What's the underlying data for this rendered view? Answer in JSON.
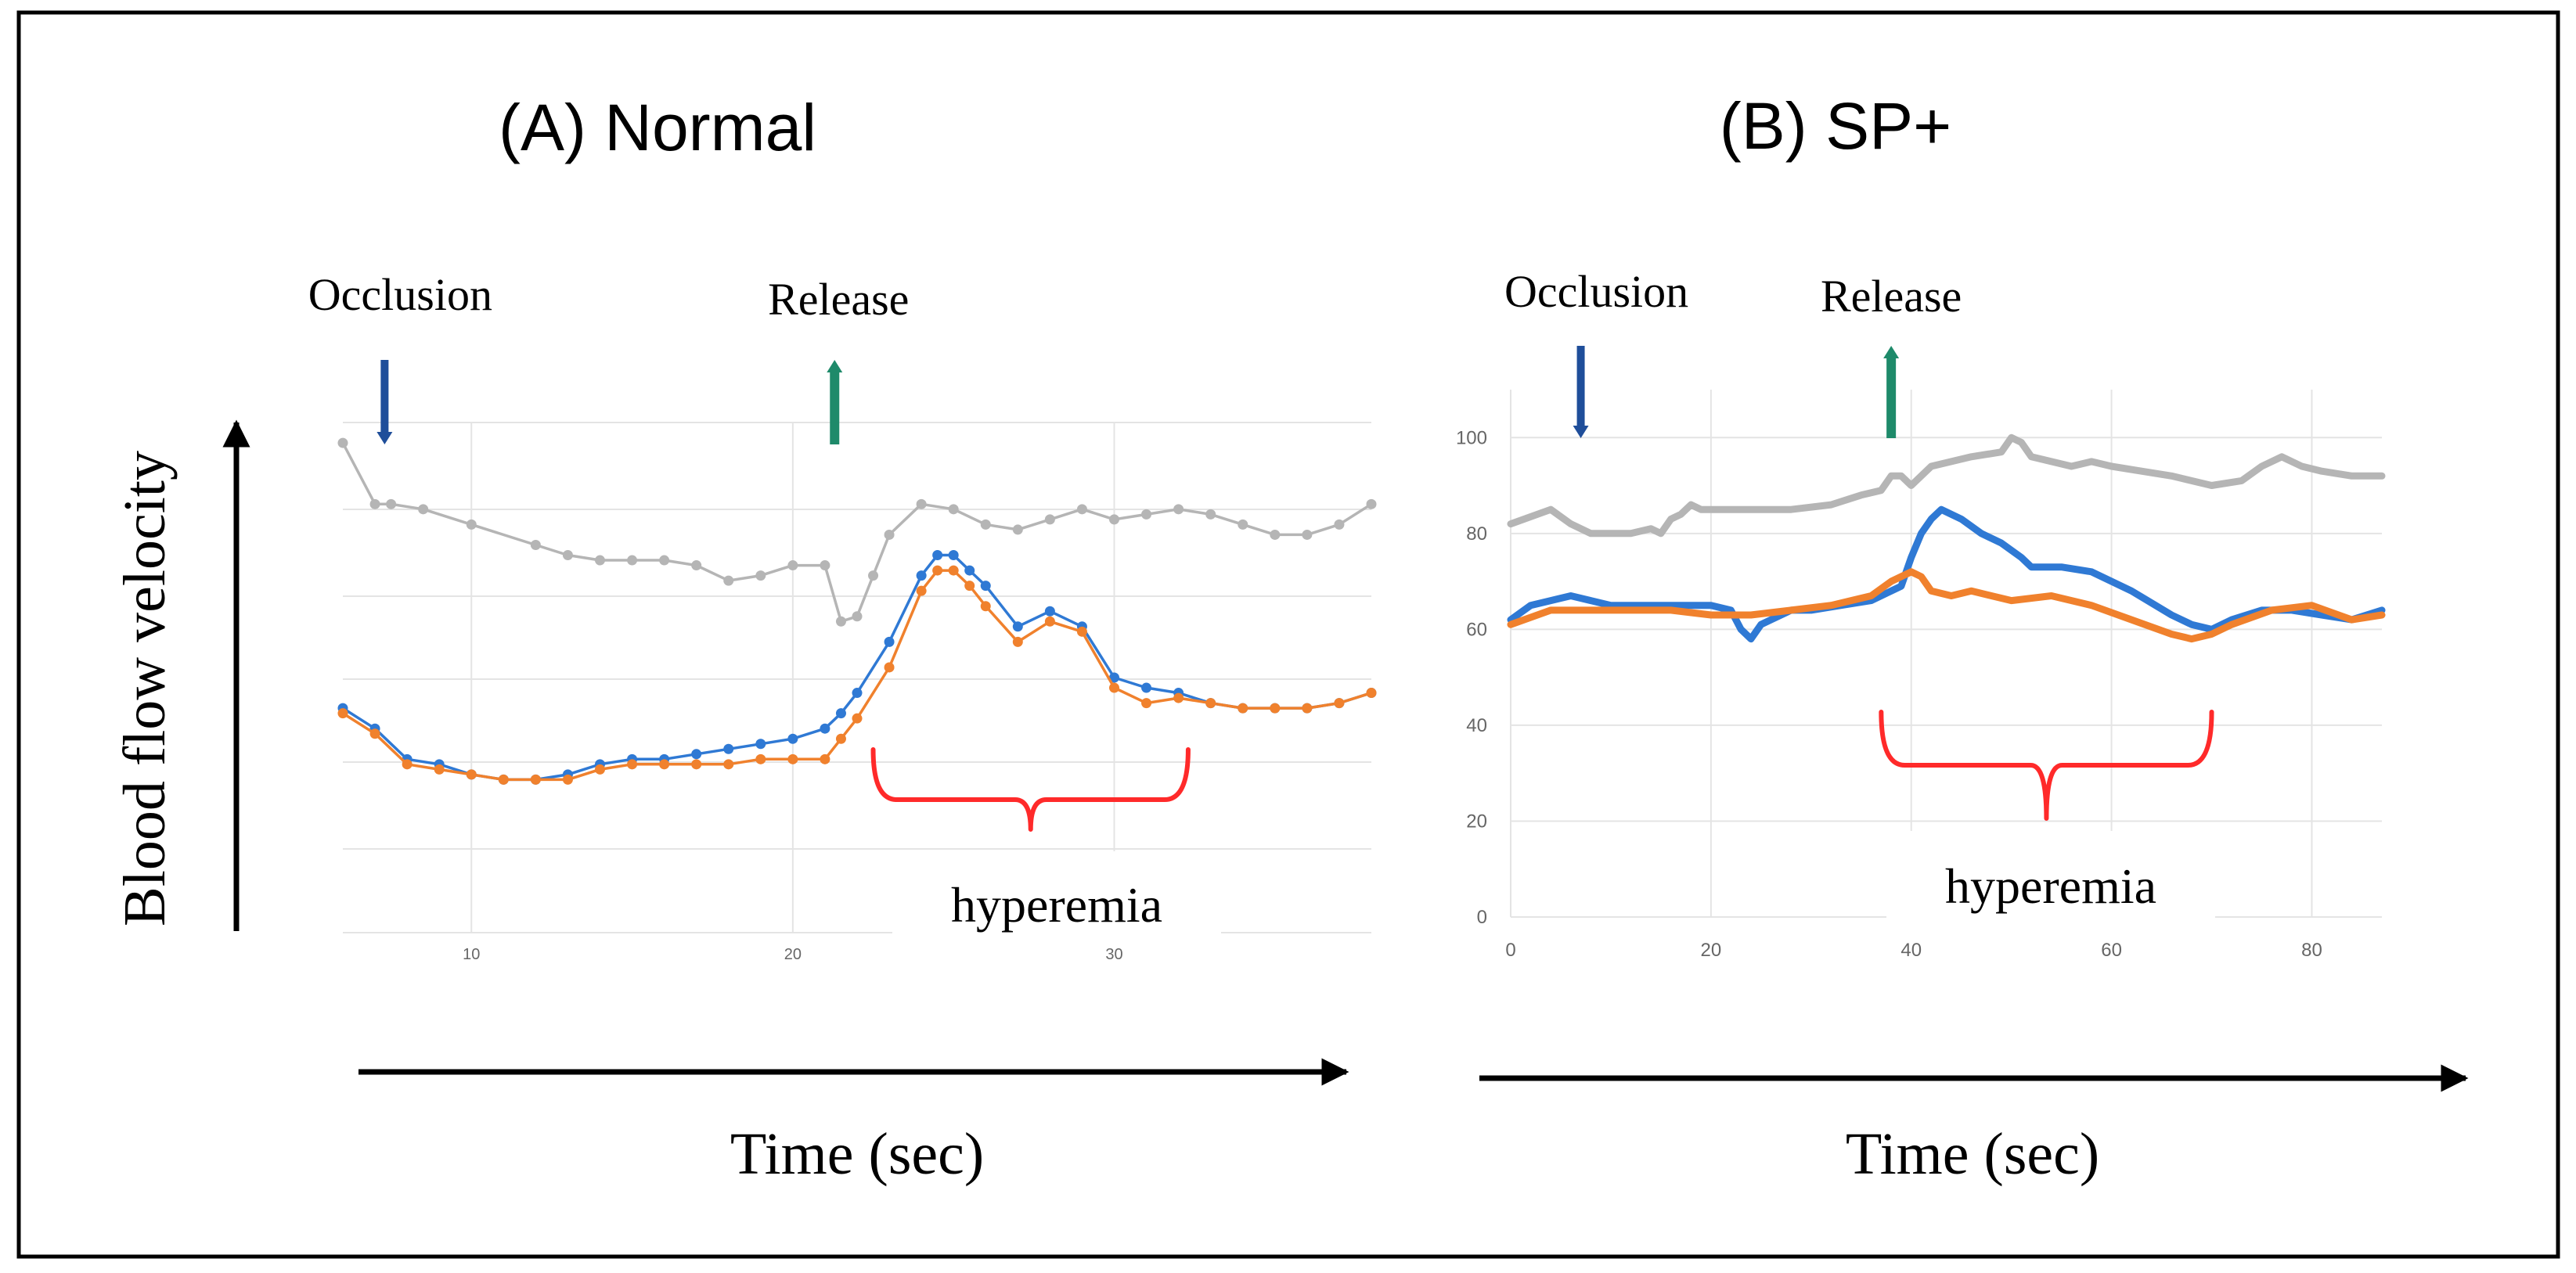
{
  "colors": {
    "blue": "#2f79d4",
    "orange": "#f0812d",
    "gray": "#b5b5b5",
    "bracket": "#ff2a2a",
    "occlusion_arrow": "#1f4e9a",
    "release_arrow": "#1e8a6a",
    "axis": "#000000",
    "grid": "#e4e4e4"
  },
  "figure": {
    "y_axis_label": "Blood flow velocity",
    "x_axis_label": "Time (sec)"
  },
  "chart_data": [
    {
      "type": "line",
      "title": "(A) Normal",
      "xlabel": "Time (sec)",
      "ylabel": "Blood flow velocity",
      "xlim": [
        6,
        38
      ],
      "ylim": [
        0,
        100
      ],
      "xticks": [
        "10",
        "20",
        "30"
      ],
      "xtick_values": [
        10,
        20,
        30
      ],
      "yticks": [],
      "show_markers": true,
      "grid": true,
      "annotations": {
        "occlusion": {
          "label": "Occlusion",
          "x": 7.3
        },
        "release": {
          "label": "Release",
          "x": 21.3
        },
        "hyperemia": {
          "label": "hyperemia",
          "x_start": 22.5,
          "x_end": 32.3
        }
      },
      "series": [
        {
          "name": "gray",
          "x": [
            6,
            7,
            7.5,
            8.5,
            10,
            12,
            13,
            14,
            15,
            16,
            17,
            18,
            19,
            20,
            21,
            21.5,
            22,
            22.5,
            23,
            24,
            25,
            26,
            27,
            28,
            29,
            30,
            31,
            32,
            33,
            34,
            35,
            36,
            37,
            38
          ],
          "y": [
            96,
            84,
            84,
            83,
            80,
            76,
            74,
            73,
            73,
            73,
            72,
            69,
            70,
            72,
            72,
            61,
            62,
            70,
            78,
            84,
            83,
            80,
            79,
            81,
            83,
            81,
            82,
            83,
            82,
            80,
            78,
            78,
            80,
            84
          ]
        },
        {
          "name": "blue",
          "x": [
            6,
            7,
            8,
            9,
            10,
            11,
            12,
            13,
            14,
            15,
            16,
            17,
            18,
            19,
            20,
            21,
            21.5,
            22,
            23,
            24,
            24.5,
            25,
            25.5,
            26,
            27,
            28,
            29,
            30,
            31,
            32,
            33,
            34,
            35,
            36,
            37,
            38
          ],
          "y": [
            44,
            40,
            34,
            33,
            31,
            30,
            30,
            31,
            33,
            34,
            34,
            35,
            36,
            37,
            38,
            40,
            43,
            47,
            57,
            70,
            74,
            74,
            71,
            68,
            60,
            63,
            60,
            50,
            48,
            47,
            45,
            44,
            44,
            44,
            45,
            47
          ]
        },
        {
          "name": "orange",
          "x": [
            6,
            7,
            8,
            9,
            10,
            11,
            12,
            13,
            14,
            15,
            16,
            17,
            18,
            19,
            20,
            21,
            21.5,
            22,
            23,
            24,
            24.5,
            25,
            25.5,
            26,
            27,
            28,
            29,
            30,
            31,
            32,
            33,
            34,
            35,
            36,
            37,
            38
          ],
          "y": [
            43,
            39,
            33,
            32,
            31,
            30,
            30,
            30,
            32,
            33,
            33,
            33,
            33,
            34,
            34,
            34,
            38,
            42,
            52,
            67,
            71,
            71,
            68,
            64,
            57,
            61,
            59,
            48,
            45,
            46,
            45,
            44,
            44,
            44,
            45,
            47
          ]
        }
      ]
    },
    {
      "type": "line",
      "title": "(B) SP+",
      "xlabel": "Time (sec)",
      "ylabel": "Blood flow velocity",
      "xlim": [
        0,
        87
      ],
      "ylim": [
        0,
        110
      ],
      "xticks": [
        "0",
        "20",
        "40",
        "60",
        "80"
      ],
      "xtick_values": [
        0,
        20,
        40,
        60,
        80
      ],
      "yticks": [
        "0",
        "20",
        "40",
        "60",
        "80",
        "100"
      ],
      "ytick_values": [
        0,
        20,
        40,
        60,
        80,
        100
      ],
      "show_markers": false,
      "grid": true,
      "annotations": {
        "occlusion": {
          "label": "Occlusion",
          "x": 7
        },
        "release": {
          "label": "Release",
          "x": 38
        },
        "hyperemia": {
          "label": "hyperemia",
          "x_start": 37,
          "x_end": 70
        }
      },
      "series": [
        {
          "name": "gray",
          "x": [
            0,
            4,
            6,
            8,
            12,
            14,
            15,
            16,
            17,
            18,
            19,
            20,
            24,
            28,
            32,
            35,
            37,
            38,
            39,
            40,
            42,
            46,
            49,
            50,
            51,
            52,
            54,
            56,
            58,
            60,
            63,
            66,
            70,
            73,
            75,
            77,
            79,
            81,
            84,
            87
          ],
          "y": [
            82,
            85,
            82,
            80,
            80,
            81,
            80,
            83,
            84,
            86,
            85,
            85,
            85,
            85,
            86,
            88,
            89,
            92,
            92,
            90,
            94,
            96,
            97,
            100,
            99,
            96,
            95,
            94,
            95,
            94,
            93,
            92,
            90,
            91,
            94,
            96,
            94,
            93,
            92,
            92
          ]
        },
        {
          "name": "blue",
          "x": [
            0,
            2,
            4,
            6,
            8,
            10,
            14,
            18,
            20,
            22,
            23,
            24,
            25,
            26,
            28,
            30,
            33,
            36,
            38,
            39,
            40,
            41,
            42,
            43,
            45,
            47,
            49,
            51,
            52,
            55,
            58,
            62,
            66,
            68,
            70,
            72,
            75,
            78,
            81,
            84,
            87
          ],
          "y": [
            62,
            65,
            66,
            67,
            66,
            65,
            65,
            65,
            65,
            64,
            60,
            58,
            61,
            62,
            64,
            64,
            65,
            66,
            68,
            69,
            75,
            80,
            83,
            85,
            83,
            80,
            78,
            75,
            73,
            73,
            72,
            68,
            63,
            61,
            60,
            62,
            64,
            64,
            63,
            62,
            64
          ]
        },
        {
          "name": "orange",
          "x": [
            0,
            4,
            8,
            12,
            16,
            20,
            24,
            28,
            32,
            36,
            38,
            40,
            41,
            42,
            44,
            46,
            50,
            54,
            58,
            62,
            66,
            68,
            70,
            72,
            76,
            80,
            84,
            87
          ],
          "y": [
            61,
            64,
            64,
            64,
            64,
            63,
            63,
            64,
            65,
            67,
            70,
            72,
            71,
            68,
            67,
            68,
            66,
            67,
            65,
            62,
            59,
            58,
            59,
            61,
            64,
            65,
            62,
            63
          ]
        }
      ]
    }
  ]
}
